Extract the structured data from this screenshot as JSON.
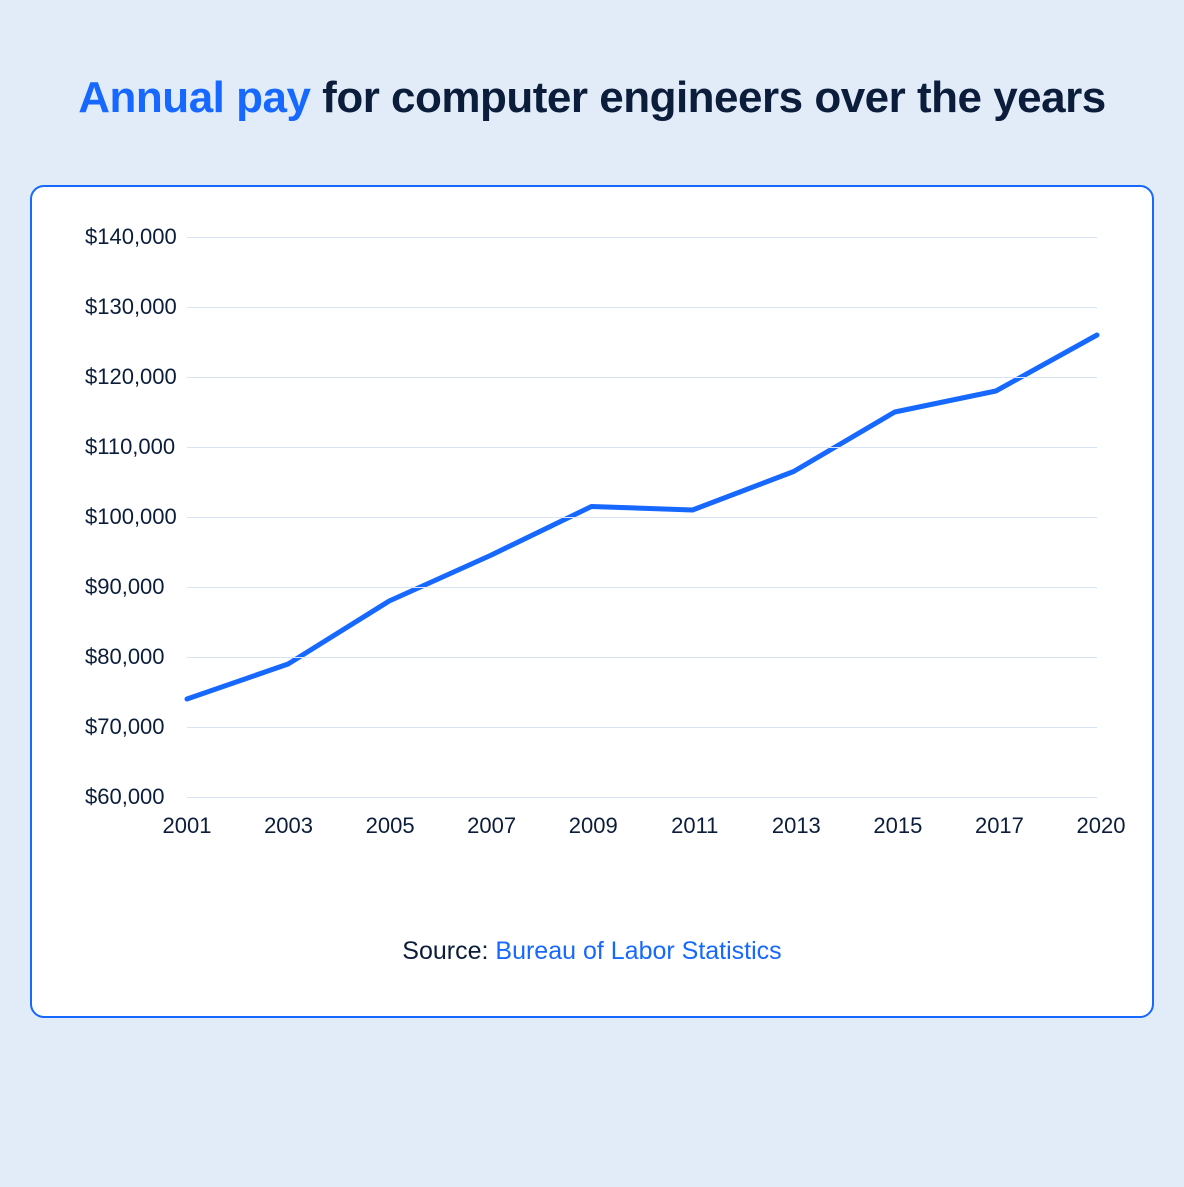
{
  "page": {
    "background_color": "#e2ecf9"
  },
  "title": {
    "highlight_text": "Annual pay",
    "rest_text": " for computer engineers over the years",
    "highlight_color": "#1668ff",
    "rest_color": "#0b1d3a",
    "fontsize": 44,
    "fontweight": 700
  },
  "chart": {
    "type": "line",
    "card_background": "#ffffff",
    "card_border_color": "#1668ff",
    "card_border_width": 2,
    "card_border_radius": 14,
    "x_labels": [
      "2001",
      "2003",
      "2005",
      "2007",
      "2009",
      "2011",
      "2013",
      "2015",
      "2017",
      "2020"
    ],
    "y_ticks": [
      60000,
      70000,
      80000,
      90000,
      100000,
      110000,
      120000,
      130000,
      140000
    ],
    "y_tick_labels": [
      "$60,000",
      "$70,000",
      "$80,000",
      "$90,000",
      "$100,000",
      "$110,000",
      "$120,000",
      "$130,000",
      "$140,000"
    ],
    "y_min": 60000,
    "y_max": 140000,
    "values": [
      74000,
      79000,
      88000,
      94500,
      101500,
      101000,
      106500,
      115000,
      118000,
      126000
    ],
    "line_color": "#1668ff",
    "line_width": 5,
    "grid_color": "#d9e4f2",
    "axis_label_color": "#0b1d3a",
    "axis_label_fontsize": 22
  },
  "source": {
    "prefix": "Source: ",
    "link_text": "Bureau of Labor Statistics",
    "prefix_color": "#0b1d3a",
    "link_color": "#1668ff",
    "fontsize": 25
  }
}
